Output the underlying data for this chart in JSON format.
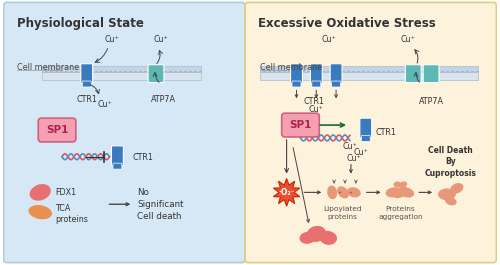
{
  "left_title": "Physiological State",
  "right_title": "Excessive Oxidative Stress",
  "left_bg": "#d6e8f5",
  "right_bg": "#fdf3dc",
  "left_border": "#b0cce0",
  "right_border": "#e8c97a",
  "ctr1_color": "#3a7bbf",
  "atp7a_color": "#5cb8b2",
  "fdx1_color": "#e87070",
  "tca_color": "#e89050",
  "o2_color": "#e85030",
  "lipoylated_color": "#e89878",
  "dna_red": "#e85060",
  "dna_blue": "#5090c0",
  "cu_label": "Cu⁺",
  "ctr1_label": "CTR1",
  "atp7a_label": "ATP7A",
  "sp1_label": "SP1",
  "fdx1_label": "FDX1",
  "tca_label": "TCA\nproteins",
  "no_death_label": "No\nSignificant\nCell death",
  "cell_membrane_label": "Cell membrane",
  "lipoylated_label": "Lipoylated\nproteins",
  "aggregation_label": "Proteins\naggregation",
  "cell_death_label": "Cell Death\nBy\nCuproptosis",
  "o2_label": "·O₂⁻",
  "title_fontsize": 8.5,
  "small_fontsize": 5.8
}
